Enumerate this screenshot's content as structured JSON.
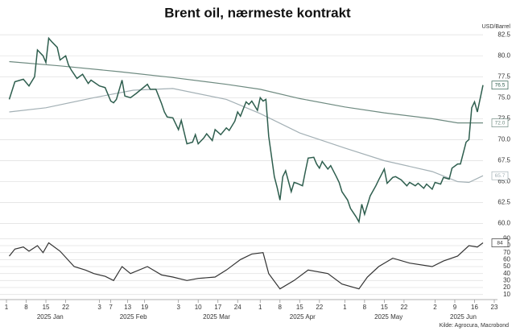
{
  "chart_data": [
    {
      "type": "line",
      "title": "Brent oil, nærmeste kontrakt",
      "y_label": "USD/Barrel",
      "grid": true,
      "ylim": [
        59,
        83
      ],
      "yticks": [
        {
          "value": 60,
          "label": "60.0"
        },
        62.5,
        {
          "value": 65,
          "label": "65.0"
        },
        67.5,
        {
          "value": 70,
          "label": "70.0"
        },
        72.5,
        {
          "value": 75,
          "label": "75.0"
        },
        77.5,
        {
          "value": 80,
          "label": "80.0"
        },
        82.5
      ],
      "series": [
        {
          "color": "#6e8a80",
          "end_label": "72.0",
          "x": [
            "2025-01-02",
            "2025-01-20",
            "2025-02-10",
            "2025-03-01",
            "2025-03-20",
            "2025-04-01",
            "2025-04-15",
            "2025-05-01",
            "2025-05-15",
            "2025-06-01",
            "2025-06-10",
            "2025-06-19"
          ],
          "values": [
            79.3,
            78.8,
            78.1,
            77.4,
            76.6,
            76.0,
            74.9,
            73.9,
            73.2,
            72.5,
            72.0,
            72.0
          ]
        },
        {
          "color": "#a3b0b5",
          "end_label": "65.7",
          "x": [
            "2025-01-02",
            "2025-01-15",
            "2025-02-01",
            "2025-02-15",
            "2025-03-01",
            "2025-03-20",
            "2025-04-01",
            "2025-04-15",
            "2025-05-01",
            "2025-05-15",
            "2025-06-01",
            "2025-06-10",
            "2025-06-14",
            "2025-06-19"
          ],
          "values": [
            73.3,
            73.8,
            75.0,
            75.9,
            76.1,
            74.8,
            73.1,
            70.8,
            69.0,
            67.5,
            66.2,
            65.0,
            64.9,
            65.7
          ]
        },
        {
          "color": "#2e5e4e",
          "end_label": "76.5",
          "x": [
            "2025-01-02",
            "2025-01-04",
            "2025-01-07",
            "2025-01-09",
            "2025-01-11",
            "2025-01-12",
            "2025-01-14",
            "2025-01-15",
            "2025-01-16",
            "2025-01-17",
            "2025-01-19",
            "2025-01-20",
            "2025-01-22",
            "2025-01-23",
            "2025-01-24",
            "2025-01-26",
            "2025-01-28",
            "2025-01-30",
            "2025-01-31",
            "2025-02-03",
            "2025-02-05",
            "2025-02-07",
            "2025-02-08",
            "2025-02-09",
            "2025-02-11",
            "2025-02-12",
            "2025-02-14",
            "2025-02-16",
            "2025-02-20",
            "2025-02-21",
            "2025-02-23",
            "2025-02-25",
            "2025-02-26",
            "2025-02-27",
            "2025-03-01",
            "2025-03-03",
            "2025-03-04",
            "2025-03-06",
            "2025-03-08",
            "2025-03-09",
            "2025-03-10",
            "2025-03-12",
            "2025-03-13",
            "2025-03-15",
            "2025-03-16",
            "2025-03-18",
            "2025-03-20",
            "2025-03-21",
            "2025-03-23",
            "2025-03-24",
            "2025-03-25",
            "2025-03-27",
            "2025-03-28",
            "2025-03-29",
            "2025-03-31",
            "2025-04-01",
            "2025-04-02",
            "2025-04-03",
            "2025-04-04",
            "2025-04-06",
            "2025-04-07",
            "2025-04-08",
            "2025-04-09",
            "2025-04-10",
            "2025-04-12",
            "2025-04-13",
            "2025-04-14",
            "2025-04-16",
            "2025-04-17",
            "2025-04-18",
            "2025-04-20",
            "2025-04-21",
            "2025-04-22",
            "2025-04-23",
            "2025-04-25",
            "2025-04-26",
            "2025-04-28",
            "2025-04-29",
            "2025-04-30",
            "2025-05-02",
            "2025-05-03",
            "2025-05-05",
            "2025-05-06",
            "2025-05-07",
            "2025-05-08",
            "2025-05-10",
            "2025-05-12",
            "2025-05-13",
            "2025-05-15",
            "2025-05-16",
            "2025-05-18",
            "2025-05-19",
            "2025-05-21",
            "2025-05-23",
            "2025-05-24",
            "2025-05-26",
            "2025-05-27",
            "2025-05-29",
            "2025-05-30",
            "2025-06-01",
            "2025-06-02",
            "2025-06-04",
            "2025-06-05",
            "2025-06-07",
            "2025-06-08",
            "2025-06-10",
            "2025-06-11",
            "2025-06-13",
            "2025-06-14",
            "2025-06-15",
            "2025-06-16",
            "2025-06-17",
            "2025-06-19"
          ],
          "values": [
            74.8,
            76.9,
            77.2,
            76.4,
            77.5,
            80.7,
            80.0,
            79.2,
            82.1,
            81.7,
            81.0,
            79.5,
            80.0,
            78.9,
            78.3,
            77.3,
            77.8,
            76.7,
            77.1,
            76.4,
            76.2,
            74.6,
            74.4,
            74.8,
            77.1,
            75.2,
            75.0,
            75.5,
            76.6,
            76.0,
            76.0,
            74.3,
            73.3,
            72.7,
            72.6,
            71.2,
            72.3,
            69.5,
            69.7,
            70.6,
            69.5,
            70.2,
            70.7,
            69.9,
            71.2,
            70.6,
            71.4,
            71.1,
            72.2,
            73.3,
            72.8,
            74.5,
            74.2,
            74.6,
            73.5,
            75.0,
            74.6,
            74.8,
            70.4,
            65.6,
            64.3,
            62.8,
            65.6,
            66.3,
            63.8,
            64.9,
            64.8,
            64.5,
            66.2,
            67.8,
            67.9,
            67.1,
            66.6,
            67.4,
            66.5,
            66.9,
            65.6,
            64.9,
            63.8,
            62.8,
            61.8,
            60.8,
            60.2,
            62.3,
            61.1,
            63.3,
            64.5,
            65.2,
            66.5,
            64.8,
            65.5,
            65.6,
            65.2,
            64.5,
            64.9,
            64.5,
            64.8,
            64.2,
            64.7,
            64.1,
            64.9,
            64.7,
            65.5,
            65.3,
            66.6,
            67.1,
            67.1,
            69.7,
            70.0,
            73.8,
            74.5,
            73.3,
            76.5
          ]
        }
      ]
    },
    {
      "type": "line",
      "grid": true,
      "source": "Kilde: Agrocura, Macrobond",
      "ylim": [
        5,
        95
      ],
      "yticks": [
        10,
        20,
        30,
        40,
        50,
        60,
        70,
        80,
        90
      ],
      "xlim": [
        "2025-01-01",
        "2025-06-23"
      ],
      "xticks": [
        {
          "value": "2025-01-01",
          "label": "1"
        },
        {
          "value": "2025-01-08",
          "label": "8"
        },
        {
          "value": "2025-01-15",
          "label": "15"
        },
        {
          "value": "2025-01-22",
          "label": "22"
        },
        {
          "value": "2025-02-03",
          "label": "3"
        },
        {
          "value": "2025-02-07",
          "label": "7"
        },
        {
          "value": "2025-02-13",
          "label": "13"
        },
        {
          "value": "2025-02-19",
          "label": "19"
        },
        {
          "value": "2025-03-03",
          "label": "3"
        },
        {
          "value": "2025-03-10",
          "label": "10"
        },
        {
          "value": "2025-03-17",
          "label": "17"
        },
        {
          "value": "2025-03-24",
          "label": "24"
        },
        {
          "value": "2025-04-01",
          "label": "1"
        },
        {
          "value": "2025-04-08",
          "label": "8"
        },
        {
          "value": "2025-04-15",
          "label": "15"
        },
        {
          "value": "2025-04-22",
          "label": "22"
        },
        {
          "value": "2025-05-01",
          "label": "1"
        },
        {
          "value": "2025-05-08",
          "label": "8"
        },
        {
          "value": "2025-05-15",
          "label": "15"
        },
        {
          "value": "2025-05-22",
          "label": "22"
        },
        {
          "value": "2025-06-02",
          "label": "2"
        },
        {
          "value": "2025-06-09",
          "label": "9"
        },
        {
          "value": "2025-06-16",
          "label": "16"
        },
        {
          "value": "2025-06-23",
          "label": "23"
        }
      ],
      "month_labels": [
        "2025 Jan",
        "2025 Feb",
        "2025 Mar",
        "2025 Apr",
        "2025 May",
        "2025 Jun"
      ],
      "series": [
        {
          "color": "#333333",
          "end_label": "84",
          "x": [
            "2025-01-02",
            "2025-01-04",
            "2025-01-07",
            "2025-01-09",
            "2025-01-12",
            "2025-01-14",
            "2025-01-16",
            "2025-01-20",
            "2025-01-25",
            "2025-01-29",
            "2025-02-01",
            "2025-02-05",
            "2025-02-08",
            "2025-02-11",
            "2025-02-14",
            "2025-02-20",
            "2025-02-25",
            "2025-03-01",
            "2025-03-06",
            "2025-03-10",
            "2025-03-16",
            "2025-03-20",
            "2025-03-25",
            "2025-03-29",
            "2025-04-02",
            "2025-04-04",
            "2025-04-08",
            "2025-04-13",
            "2025-04-18",
            "2025-04-25",
            "2025-04-30",
            "2025-05-06",
            "2025-05-09",
            "2025-05-13",
            "2025-05-18",
            "2025-05-24",
            "2025-06-01",
            "2025-06-05",
            "2025-06-10",
            "2025-06-14",
            "2025-06-17",
            "2025-06-19"
          ],
          "values": [
            65,
            75,
            78,
            72,
            80,
            70,
            84,
            72,
            50,
            45,
            40,
            36,
            30,
            50,
            40,
            50,
            38,
            35,
            30,
            33,
            35,
            45,
            60,
            68,
            70,
            40,
            18,
            30,
            45,
            40,
            25,
            18,
            35,
            50,
            62,
            55,
            50,
            58,
            65,
            80,
            78,
            84
          ]
        }
      ]
    }
  ]
}
